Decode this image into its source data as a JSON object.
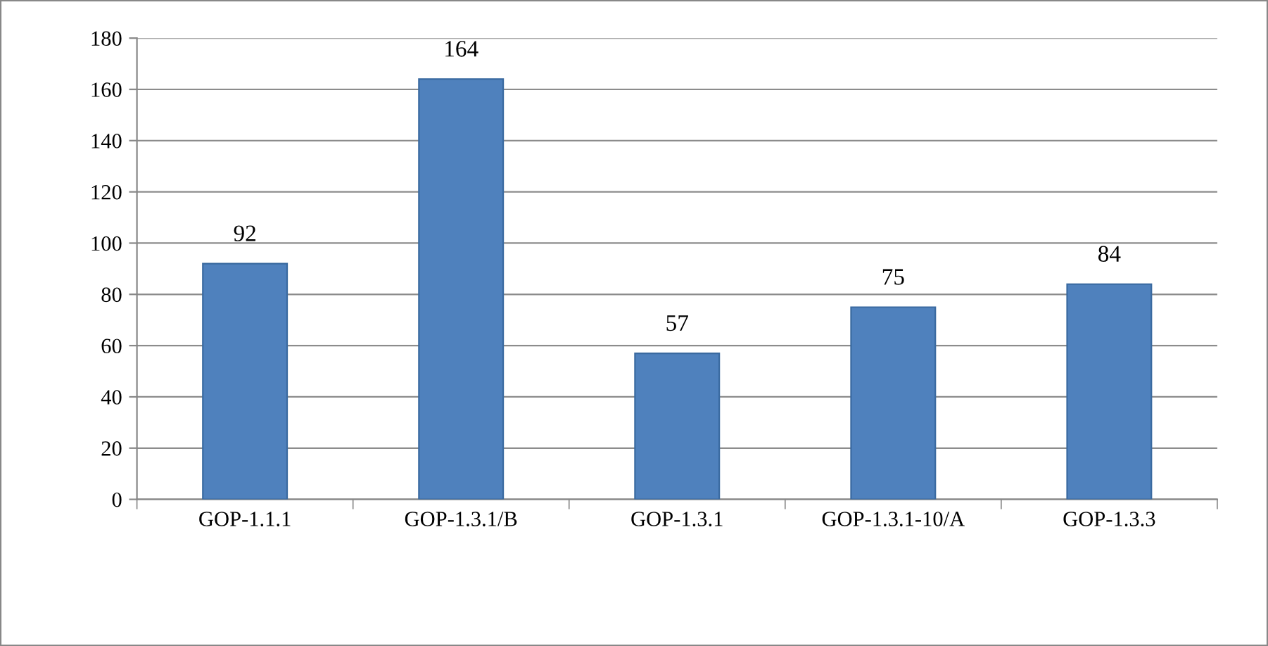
{
  "chart_data": {
    "type": "bar",
    "categories": [
      "GOP-1.1.1",
      "GOP-1.3.1/B",
      "GOP-1.3.1",
      "GOP-1.3.1-10/A",
      "GOP-1.3.3"
    ],
    "values": [
      92,
      164,
      57,
      75,
      84
    ],
    "color": "#4f81bd",
    "ylim": [
      0,
      180
    ],
    "yticks": [
      0,
      20,
      40,
      60,
      80,
      100,
      120,
      140,
      160,
      180
    ],
    "grid": "y",
    "data_labels": true,
    "legend": false
  }
}
